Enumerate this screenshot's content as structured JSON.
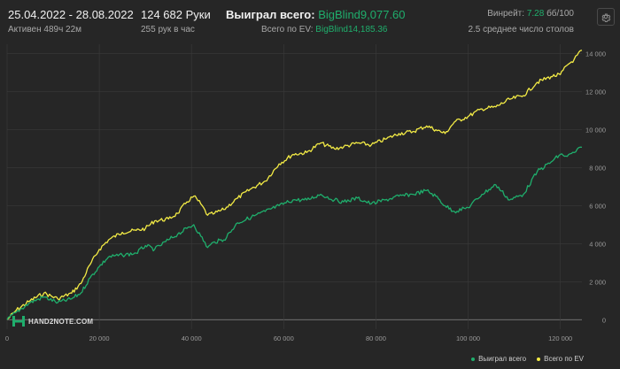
{
  "header": {
    "date_range": "25.04.2022 - 28.08.2022",
    "active_time": "Активен 489ч 22м",
    "hands": "124 682 Руки",
    "hands_rate": "255 рук в час",
    "won_label": "Выиграл всего:",
    "won_value": "BigBlind9,077.60",
    "ev_label": "Всего по EV:",
    "ev_value": "BigBlind14,185.36",
    "winrate_label": "Винрейт:",
    "winrate_value": "7.28",
    "winrate_unit": "бб/100",
    "tables": "2.5 среднее число столов"
  },
  "watermark": "HAND2NOTE.COM",
  "legend": {
    "won": "Выиграл всего",
    "ev": "Всего по EV"
  },
  "colors": {
    "won": "#1fae6c",
    "ev": "#f2ea45",
    "grid": "#3a3a3a",
    "background": "#262626"
  },
  "icons": {
    "settings": "gear-icon",
    "logo": "hand2note-logo-icon"
  },
  "chart_data": {
    "type": "line",
    "xlabel": "",
    "ylabel": "",
    "xlim": [
      0,
      124682
    ],
    "ylim": [
      -500,
      14500
    ],
    "x_ticks": [
      0,
      20000,
      40000,
      60000,
      80000,
      100000,
      120000
    ],
    "x_tick_labels": [
      "0",
      "20 000",
      "40 000",
      "60 000",
      "80 000",
      "100 000",
      "120 000"
    ],
    "y_ticks": [
      0,
      2000,
      4000,
      6000,
      8000,
      10000,
      12000,
      14000
    ],
    "y_tick_labels": [
      "0",
      "2 000",
      "4 000",
      "6 000",
      "8 000",
      "10 000",
      "12 000",
      "14 000"
    ],
    "grid": true,
    "legend_position": "bottom-right",
    "series": [
      {
        "name": "Всего по EV",
        "color": "#f2ea45",
        "x": [
          0,
          2000,
          5000,
          8000,
          11000,
          14000,
          16000,
          18000,
          20000,
          22000,
          25000,
          28000,
          30000,
          32000,
          35000,
          37000,
          39000,
          40500,
          42000,
          43500,
          45000,
          47000,
          50000,
          53000,
          56000,
          59000,
          62000,
          65000,
          68000,
          71000,
          73000,
          76000,
          79000,
          82000,
          85000,
          88000,
          91000,
          93000,
          95000,
          97000,
          100000,
          103000,
          106000,
          109000,
          112000,
          115000,
          118000,
          120000,
          121500,
          123000,
          124682
        ],
        "y": [
          0,
          500,
          1000,
          1400,
          1100,
          1400,
          1900,
          2900,
          3700,
          4200,
          4600,
          4700,
          4800,
          5200,
          5300,
          5600,
          6200,
          6500,
          6100,
          5500,
          5600,
          5800,
          6400,
          6900,
          7300,
          8200,
          8700,
          8800,
          9300,
          9000,
          9100,
          9300,
          9200,
          9500,
          9800,
          9900,
          10200,
          10000,
          9800,
          10400,
          10700,
          11100,
          11200,
          11600,
          11800,
          12500,
          12800,
          12900,
          13400,
          13700,
          14185
        ]
      },
      {
        "name": "Выиграл всего",
        "color": "#1fae6c",
        "x": [
          0,
          2000,
          5000,
          8000,
          11000,
          14000,
          16000,
          18000,
          20000,
          22000,
          25000,
          28000,
          30000,
          32000,
          35000,
          37000,
          39000,
          40500,
          42000,
          43500,
          45000,
          47000,
          50000,
          53000,
          56000,
          59000,
          62000,
          65000,
          68000,
          71000,
          73000,
          76000,
          79000,
          82000,
          85000,
          88000,
          91000,
          93000,
          95000,
          97000,
          100000,
          103000,
          106000,
          109000,
          112000,
          115000,
          118000,
          120000,
          121500,
          123000,
          124682
        ],
        "y": [
          0,
          400,
          900,
          1200,
          900,
          1100,
          1400,
          2200,
          2800,
          3300,
          3400,
          3500,
          3900,
          3700,
          4200,
          4500,
          4800,
          5000,
          4400,
          3800,
          4100,
          4200,
          5100,
          5400,
          5700,
          6000,
          6300,
          6300,
          6600,
          6300,
          6200,
          6400,
          6100,
          6300,
          6500,
          6600,
          6800,
          6500,
          6000,
          5700,
          5900,
          6600,
          7100,
          6300,
          6600,
          7800,
          8300,
          8700,
          8600,
          8800,
          9077
        ]
      }
    ]
  }
}
